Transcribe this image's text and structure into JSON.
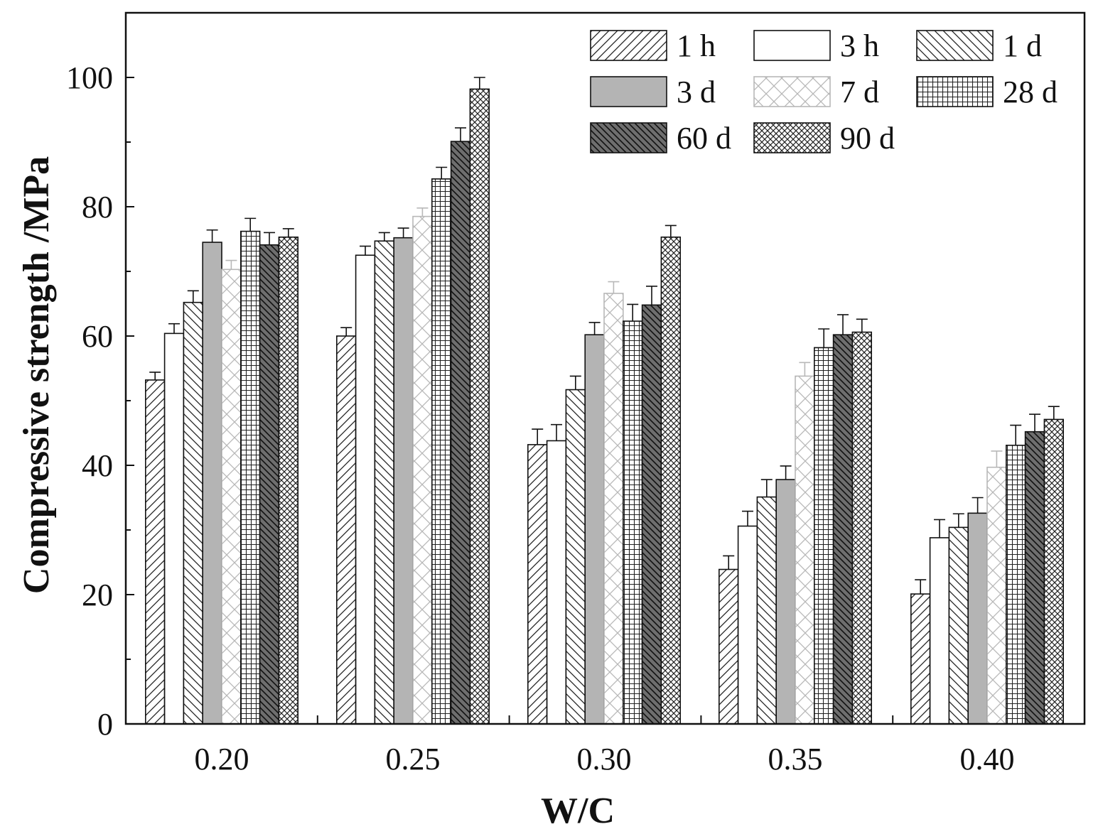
{
  "chart_data": {
    "type": "bar",
    "title": "",
    "xlabel": "W/C",
    "ylabel": "Compressive strength /MPa",
    "ylim": [
      0,
      110
    ],
    "yticks": [
      0,
      20,
      40,
      60,
      80,
      100
    ],
    "ytick_labels": [
      "0",
      "20",
      "40",
      "60",
      "80",
      "100"
    ],
    "categories": [
      "0.20",
      "0.25",
      "0.30",
      "0.35",
      "0.40"
    ],
    "grid": false,
    "legend_position": "top-right",
    "series": [
      {
        "name": "1 h",
        "pattern": "diag-up-sparse",
        "values": [
          53.2,
          60.0,
          43.2,
          23.9,
          20.1
        ],
        "errors": [
          1.2,
          1.3,
          2.4,
          2.1,
          2.2
        ]
      },
      {
        "name": "3 h",
        "pattern": "plain-white",
        "values": [
          60.4,
          72.5,
          43.8,
          30.6,
          28.8
        ],
        "errors": [
          1.5,
          1.4,
          2.5,
          2.3,
          2.8
        ]
      },
      {
        "name": "1 d",
        "pattern": "diag-down-sparse",
        "values": [
          65.2,
          74.7,
          51.7,
          35.1,
          30.4
        ],
        "errors": [
          1.8,
          1.3,
          2.1,
          2.7,
          2.1
        ]
      },
      {
        "name": "3 d",
        "pattern": "solid-gray",
        "values": [
          74.5,
          75.2,
          60.2,
          37.8,
          32.6
        ],
        "errors": [
          1.9,
          1.5,
          1.9,
          2.1,
          2.4
        ]
      },
      {
        "name": "7 d",
        "pattern": "cross-light",
        "values": [
          70.3,
          78.5,
          66.6,
          53.8,
          39.7
        ],
        "errors": [
          1.4,
          1.3,
          1.8,
          2.1,
          2.5
        ]
      },
      {
        "name": "28 d",
        "pattern": "grid",
        "values": [
          76.2,
          84.3,
          62.3,
          58.2,
          43.1
        ],
        "errors": [
          2.0,
          1.8,
          2.6,
          2.9,
          3.1
        ]
      },
      {
        "name": "60 d",
        "pattern": "dark-diag",
        "values": [
          74.1,
          90.1,
          64.8,
          60.2,
          45.2
        ],
        "errors": [
          1.9,
          2.1,
          2.9,
          3.1,
          2.7
        ]
      },
      {
        "name": "90 d",
        "pattern": "crosshatch-dense",
        "values": [
          75.3,
          98.2,
          75.3,
          60.6,
          47.1
        ],
        "errors": [
          1.3,
          1.8,
          1.8,
          2.0,
          2.0
        ]
      }
    ]
  },
  "colors": {
    "axis": "#111111",
    "gray_fill": "#b4b4b4",
    "dark_fill": "#6e6e6e",
    "light_line": "#b8b8b8",
    "white": "#ffffff"
  }
}
